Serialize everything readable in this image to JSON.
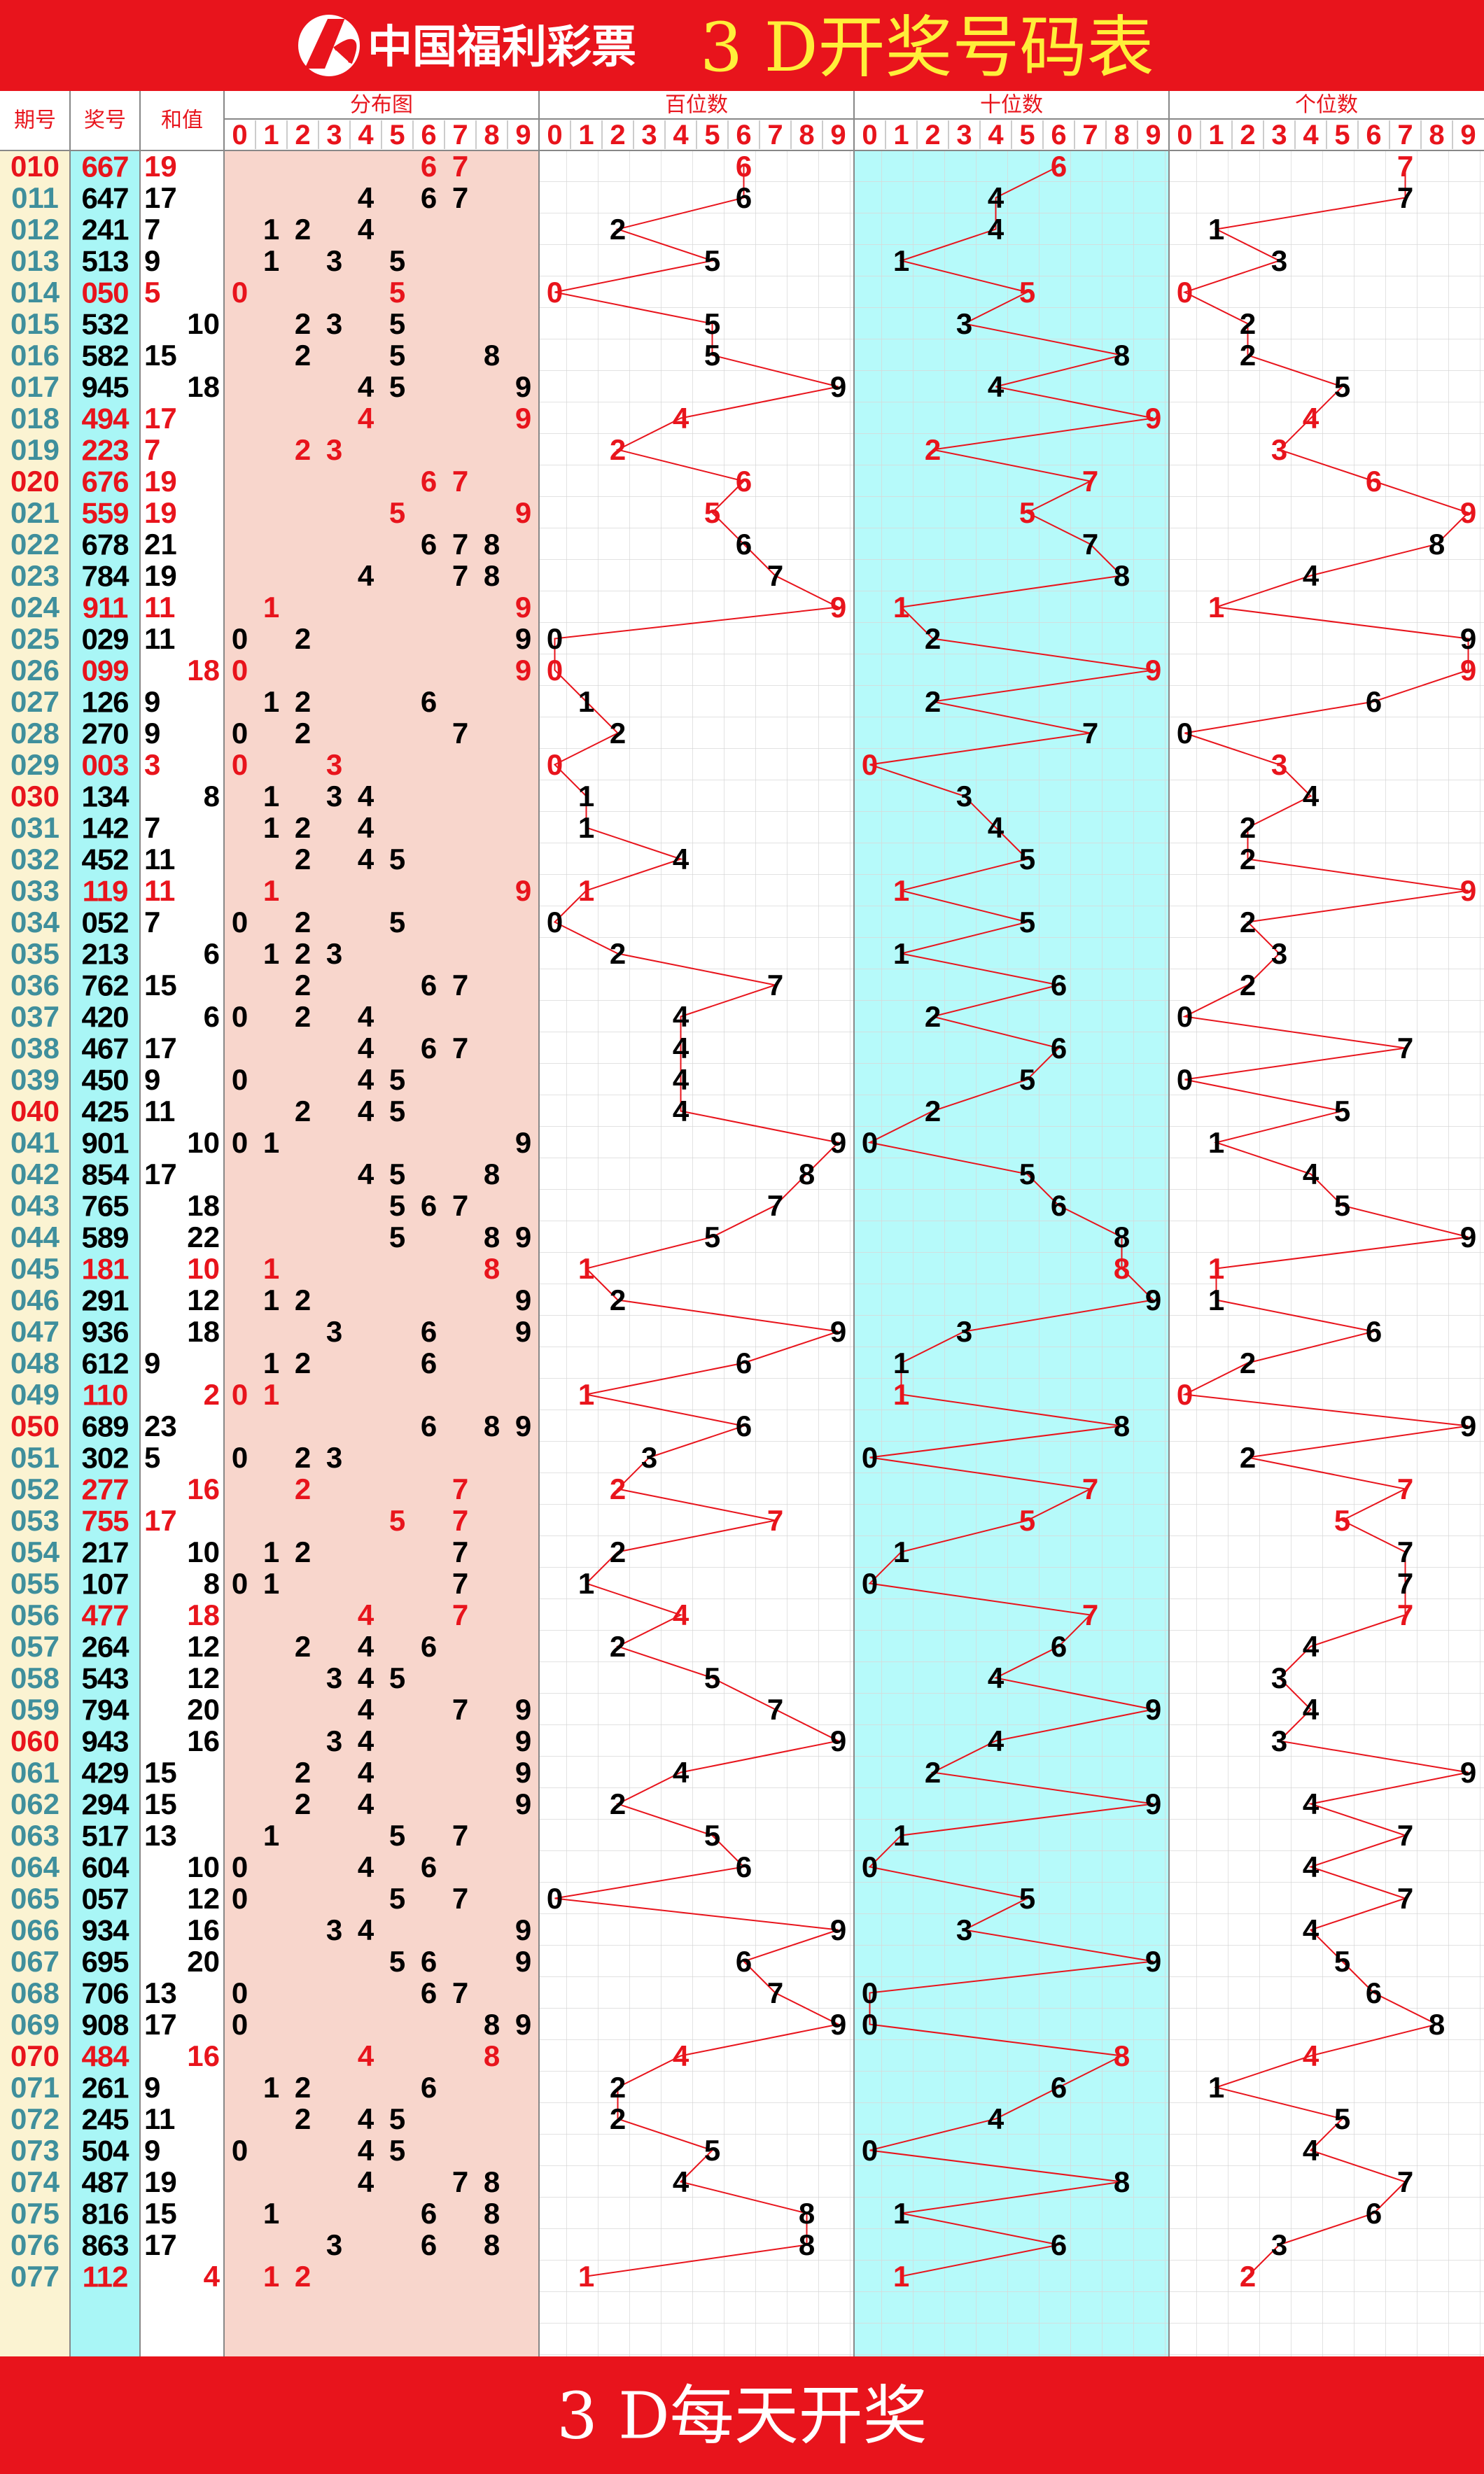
{
  "header": {
    "logo": "中国福利彩票",
    "title": "3 D开奖号码表"
  },
  "columns": {
    "issue": "期号",
    "number": "奖号",
    "sum": "和值",
    "distribution": "分布图",
    "hundreds": "百位数",
    "tens": "十位数",
    "units": "个位数"
  },
  "digits": [
    0,
    1,
    2,
    3,
    4,
    5,
    6,
    7,
    8,
    9
  ],
  "rows": [
    {
      "issue": "010",
      "number": [
        6,
        6,
        7
      ],
      "sum": 19
    },
    {
      "issue": "011",
      "number": [
        6,
        4,
        7
      ],
      "sum": 17
    },
    {
      "issue": "012",
      "number": [
        2,
        4,
        1
      ],
      "sum": 7
    },
    {
      "issue": "013",
      "number": [
        5,
        1,
        3
      ],
      "sum": 9
    },
    {
      "issue": "014",
      "number": [
        0,
        5,
        0
      ],
      "sum": 5
    },
    {
      "issue": "015",
      "number": [
        5,
        3,
        2
      ],
      "sum": 10
    },
    {
      "issue": "016",
      "number": [
        5,
        8,
        2
      ],
      "sum": 15
    },
    {
      "issue": "017",
      "number": [
        9,
        4,
        5
      ],
      "sum": 18
    },
    {
      "issue": "018",
      "number": [
        4,
        9,
        4
      ],
      "sum": 17
    },
    {
      "issue": "019",
      "number": [
        2,
        2,
        3
      ],
      "sum": 7
    },
    {
      "issue": "020",
      "number": [
        6,
        7,
        6
      ],
      "sum": 19
    },
    {
      "issue": "021",
      "number": [
        5,
        5,
        9
      ],
      "sum": 19
    },
    {
      "issue": "022",
      "number": [
        6,
        7,
        8
      ],
      "sum": 21
    },
    {
      "issue": "023",
      "number": [
        7,
        8,
        4
      ],
      "sum": 19
    },
    {
      "issue": "024",
      "number": [
        9,
        1,
        1
      ],
      "sum": 11
    },
    {
      "issue": "025",
      "number": [
        0,
        2,
        9
      ],
      "sum": 11
    },
    {
      "issue": "026",
      "number": [
        0,
        9,
        9
      ],
      "sum": 18
    },
    {
      "issue": "027",
      "number": [
        1,
        2,
        6
      ],
      "sum": 9
    },
    {
      "issue": "028",
      "number": [
        2,
        7,
        0
      ],
      "sum": 9
    },
    {
      "issue": "029",
      "number": [
        0,
        0,
        3
      ],
      "sum": 3
    },
    {
      "issue": "030",
      "number": [
        1,
        3,
        4
      ],
      "sum": 8
    },
    {
      "issue": "031",
      "number": [
        1,
        4,
        2
      ],
      "sum": 7
    },
    {
      "issue": "032",
      "number": [
        4,
        5,
        2
      ],
      "sum": 11
    },
    {
      "issue": "033",
      "number": [
        1,
        1,
        9
      ],
      "sum": 11
    },
    {
      "issue": "034",
      "number": [
        0,
        5,
        2
      ],
      "sum": 7
    },
    {
      "issue": "035",
      "number": [
        2,
        1,
        3
      ],
      "sum": 6
    },
    {
      "issue": "036",
      "number": [
        7,
        6,
        2
      ],
      "sum": 15
    },
    {
      "issue": "037",
      "number": [
        4,
        2,
        0
      ],
      "sum": 6
    },
    {
      "issue": "038",
      "number": [
        4,
        6,
        7
      ],
      "sum": 17
    },
    {
      "issue": "039",
      "number": [
        4,
        5,
        0
      ],
      "sum": 9
    },
    {
      "issue": "040",
      "number": [
        4,
        2,
        5
      ],
      "sum": 11
    },
    {
      "issue": "041",
      "number": [
        9,
        0,
        1
      ],
      "sum": 10
    },
    {
      "issue": "042",
      "number": [
        8,
        5,
        4
      ],
      "sum": 17
    },
    {
      "issue": "043",
      "number": [
        7,
        6,
        5
      ],
      "sum": 18
    },
    {
      "issue": "044",
      "number": [
        5,
        8,
        9
      ],
      "sum": 22
    },
    {
      "issue": "045",
      "number": [
        1,
        8,
        1
      ],
      "sum": 10
    },
    {
      "issue": "046",
      "number": [
        2,
        9,
        1
      ],
      "sum": 12
    },
    {
      "issue": "047",
      "number": [
        9,
        3,
        6
      ],
      "sum": 18
    },
    {
      "issue": "048",
      "number": [
        6,
        1,
        2
      ],
      "sum": 9
    },
    {
      "issue": "049",
      "number": [
        1,
        1,
        0
      ],
      "sum": 2
    },
    {
      "issue": "050",
      "number": [
        6,
        8,
        9
      ],
      "sum": 23
    },
    {
      "issue": "051",
      "number": [
        3,
        0,
        2
      ],
      "sum": 5
    },
    {
      "issue": "052",
      "number": [
        2,
        7,
        7
      ],
      "sum": 16
    },
    {
      "issue": "053",
      "number": [
        7,
        5,
        5
      ],
      "sum": 17
    },
    {
      "issue": "054",
      "number": [
        2,
        1,
        7
      ],
      "sum": 10
    },
    {
      "issue": "055",
      "number": [
        1,
        0,
        7
      ],
      "sum": 8
    },
    {
      "issue": "056",
      "number": [
        4,
        7,
        7
      ],
      "sum": 18
    },
    {
      "issue": "057",
      "number": [
        2,
        6,
        4
      ],
      "sum": 12
    },
    {
      "issue": "058",
      "number": [
        5,
        4,
        3
      ],
      "sum": 12
    },
    {
      "issue": "059",
      "number": [
        7,
        9,
        4
      ],
      "sum": 20
    },
    {
      "issue": "060",
      "number": [
        9,
        4,
        3
      ],
      "sum": 16
    },
    {
      "issue": "061",
      "number": [
        4,
        2,
        9
      ],
      "sum": 15
    },
    {
      "issue": "062",
      "number": [
        2,
        9,
        4
      ],
      "sum": 15
    },
    {
      "issue": "063",
      "number": [
        5,
        1,
        7
      ],
      "sum": 13
    },
    {
      "issue": "064",
      "number": [
        6,
        0,
        4
      ],
      "sum": 10
    },
    {
      "issue": "065",
      "number": [
        0,
        5,
        7
      ],
      "sum": 12
    },
    {
      "issue": "066",
      "number": [
        9,
        3,
        4
      ],
      "sum": 16
    },
    {
      "issue": "067",
      "number": [
        6,
        9,
        5
      ],
      "sum": 20
    },
    {
      "issue": "068",
      "number": [
        7,
        0,
        6
      ],
      "sum": 13
    },
    {
      "issue": "069",
      "number": [
        9,
        0,
        8
      ],
      "sum": 17
    },
    {
      "issue": "070",
      "number": [
        4,
        8,
        4
      ],
      "sum": 16
    },
    {
      "issue": "071",
      "number": [
        2,
        6,
        1
      ],
      "sum": 9
    },
    {
      "issue": "072",
      "number": [
        2,
        4,
        5
      ],
      "sum": 11
    },
    {
      "issue": "073",
      "number": [
        5,
        0,
        4
      ],
      "sum": 9
    },
    {
      "issue": "074",
      "number": [
        4,
        8,
        7
      ],
      "sum": 19
    },
    {
      "issue": "075",
      "number": [
        8,
        1,
        6
      ],
      "sum": 15
    },
    {
      "issue": "076",
      "number": [
        8,
        6,
        3
      ],
      "sum": 17
    },
    {
      "issue": "077",
      "number": [
        1,
        1,
        2
      ],
      "sum": 4
    }
  ],
  "footer": "3 D每天开奖"
}
